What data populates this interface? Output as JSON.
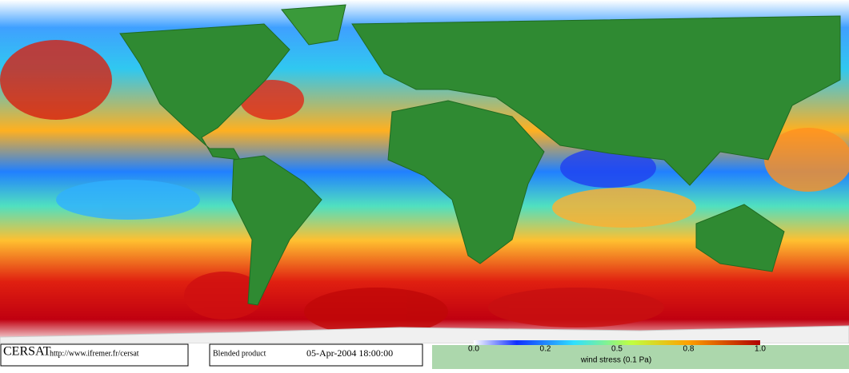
{
  "header": {
    "brand": "CERSAT",
    "url": "http://www.ifremer.fr/cersat",
    "product": "Blended product",
    "date": "05-Apr-2004 18:00:00"
  },
  "colorbar": {
    "label": "wind stress (0.1 Pa)",
    "ticks": [
      "0.0",
      "0.2",
      "0.5",
      "0.8",
      "1.0"
    ]
  }
}
